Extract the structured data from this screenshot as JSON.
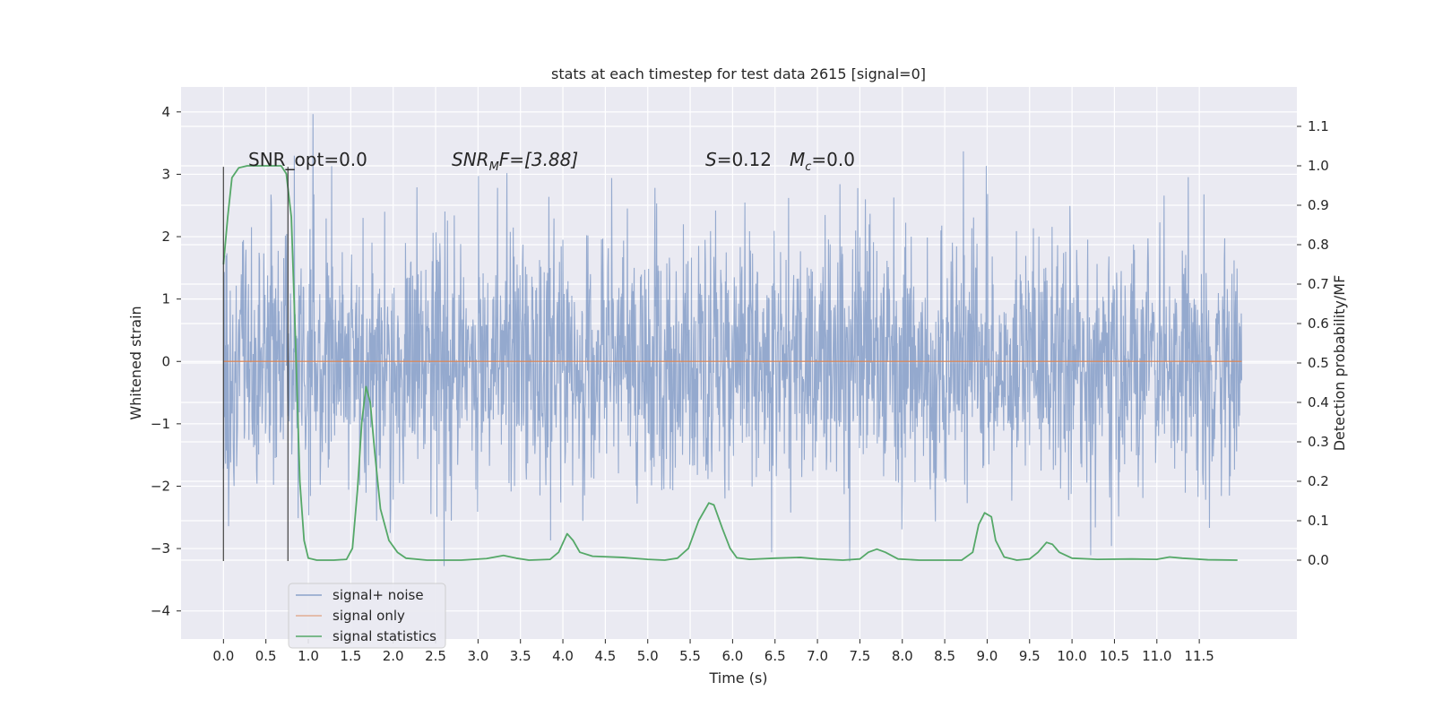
{
  "chart_data": {
    "type": "line",
    "title": "stats at each timestep for test data 2615 [signal=0]",
    "xlabel": "Time (s)",
    "ylabel_left": "Whitened strain",
    "ylabel_right": "Detection probability/MF",
    "xlim": [
      -0.5,
      12.65
    ],
    "ylim_left": [
      -4.45,
      4.4
    ],
    "ylim_right": [
      -0.2,
      1.2
    ],
    "xticks": [
      0.0,
      0.5,
      1.0,
      1.5,
      2.0,
      2.5,
      3.0,
      3.5,
      4.0,
      4.5,
      5.0,
      5.5,
      6.0,
      6.5,
      7.0,
      7.5,
      8.0,
      8.5,
      9.0,
      9.5,
      10.0,
      10.5,
      11.0,
      11.5
    ],
    "xtick_labels": [
      "0.0",
      "0.5",
      "1.0",
      "1.5",
      "2.0",
      "2.5",
      "3.0",
      "3.5",
      "4.0",
      "4.5",
      "5.0",
      "5.5",
      "6.0",
      "6.5",
      "7.0",
      "7.5",
      "8.0",
      "8.5",
      "9.0",
      "9.5",
      "10.0",
      "10.5",
      "11.0",
      "11.5"
    ],
    "yticks_left": [
      -4,
      -3,
      -2,
      -1,
      0,
      1,
      2,
      3,
      4
    ],
    "ytick_labels_left": [
      "−4",
      "−3",
      "−2",
      "−1",
      "0",
      "1",
      "2",
      "3",
      "4"
    ],
    "yticks_right": [
      0.0,
      0.1,
      0.2,
      0.3,
      0.4,
      0.5,
      0.6,
      0.7,
      0.8,
      0.9,
      1.0,
      1.1
    ],
    "ytick_labels_right": [
      "0.0",
      "0.1",
      "0.2",
      "0.3",
      "0.4",
      "0.5",
      "0.6",
      "0.7",
      "0.8",
      "0.9",
      "1.0",
      "1.1"
    ],
    "grid": true,
    "legend_placement": "lower-left",
    "annotations": {
      "snr_opt": "SNR_opt=0.0",
      "snr_mf": {
        "base": "SNR",
        "sub": "M",
        "rest": "F=[3.88]"
      },
      "s_val": {
        "sym": "S",
        "rest": "=0.12"
      },
      "mc_val": {
        "sym": "M",
        "sub": "c",
        "rest": "=0.0"
      }
    },
    "vlines": [
      {
        "x": 0.0,
        "ymin": -3.2,
        "ymax": 3.12
      },
      {
        "x": 0.76,
        "ymin": -3.2,
        "ymax": 3.12
      }
    ],
    "series": [
      {
        "name": "signal+ noise",
        "color": "#4c72b0",
        "kind": "noise",
        "x_range": [
          0.0,
          12.0
        ],
        "amplitude_std": 1.05,
        "axis": "left"
      },
      {
        "name": "signal only",
        "color": "#dd8452",
        "kind": "constant",
        "x_range": [
          0.0,
          12.0
        ],
        "value": 0.0,
        "axis": "left"
      },
      {
        "name": "signal statistics",
        "color": "#55a868",
        "kind": "line",
        "axis": "right",
        "points": [
          [
            0.0,
            0.75
          ],
          [
            0.05,
            0.87
          ],
          [
            0.1,
            0.97
          ],
          [
            0.18,
            0.995
          ],
          [
            0.28,
            1.0
          ],
          [
            0.4,
            1.0
          ],
          [
            0.5,
            1.0
          ],
          [
            0.6,
            1.0
          ],
          [
            0.68,
            1.0
          ],
          [
            0.74,
            0.98
          ],
          [
            0.8,
            0.87
          ],
          [
            0.85,
            0.55
          ],
          [
            0.9,
            0.2
          ],
          [
            0.95,
            0.05
          ],
          [
            1.0,
            0.005
          ],
          [
            1.1,
            0.0
          ],
          [
            1.3,
            0.0
          ],
          [
            1.45,
            0.002
          ],
          [
            1.52,
            0.03
          ],
          [
            1.58,
            0.18
          ],
          [
            1.63,
            0.35
          ],
          [
            1.68,
            0.44
          ],
          [
            1.73,
            0.4
          ],
          [
            1.78,
            0.28
          ],
          [
            1.85,
            0.13
          ],
          [
            1.95,
            0.05
          ],
          [
            2.05,
            0.02
          ],
          [
            2.15,
            0.005
          ],
          [
            2.4,
            0.0
          ],
          [
            2.8,
            0.0
          ],
          [
            3.1,
            0.004
          ],
          [
            3.3,
            0.012
          ],
          [
            3.45,
            0.005
          ],
          [
            3.6,
            0.0
          ],
          [
            3.85,
            0.002
          ],
          [
            3.95,
            0.02
          ],
          [
            4.05,
            0.067
          ],
          [
            4.12,
            0.05
          ],
          [
            4.2,
            0.02
          ],
          [
            4.35,
            0.01
          ],
          [
            4.7,
            0.007
          ],
          [
            5.0,
            0.002
          ],
          [
            5.2,
            0.0
          ],
          [
            5.35,
            0.005
          ],
          [
            5.48,
            0.03
          ],
          [
            5.6,
            0.1
          ],
          [
            5.72,
            0.145
          ],
          [
            5.78,
            0.14
          ],
          [
            5.88,
            0.08
          ],
          [
            5.97,
            0.03
          ],
          [
            6.05,
            0.006
          ],
          [
            6.2,
            0.002
          ],
          [
            6.5,
            0.005
          ],
          [
            6.8,
            0.007
          ],
          [
            7.0,
            0.003
          ],
          [
            7.3,
            0.0
          ],
          [
            7.5,
            0.003
          ],
          [
            7.6,
            0.02
          ],
          [
            7.7,
            0.028
          ],
          [
            7.8,
            0.02
          ],
          [
            7.95,
            0.003
          ],
          [
            8.2,
            0.0
          ],
          [
            8.7,
            0.0
          ],
          [
            8.83,
            0.02
          ],
          [
            8.9,
            0.09
          ],
          [
            8.97,
            0.12
          ],
          [
            9.05,
            0.11
          ],
          [
            9.1,
            0.05
          ],
          [
            9.2,
            0.008
          ],
          [
            9.35,
            0.0
          ],
          [
            9.5,
            0.003
          ],
          [
            9.6,
            0.02
          ],
          [
            9.7,
            0.045
          ],
          [
            9.77,
            0.04
          ],
          [
            9.85,
            0.02
          ],
          [
            10.0,
            0.005
          ],
          [
            10.3,
            0.002
          ],
          [
            10.7,
            0.003
          ],
          [
            11.0,
            0.002
          ],
          [
            11.15,
            0.008
          ],
          [
            11.3,
            0.005
          ],
          [
            11.6,
            0.001
          ],
          [
            11.95,
            0.0
          ]
        ]
      }
    ]
  }
}
